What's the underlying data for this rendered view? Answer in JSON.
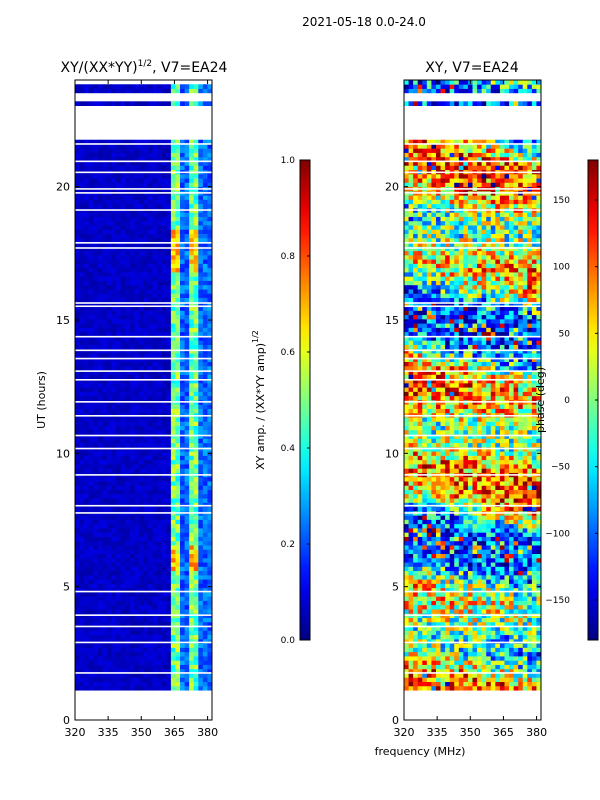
{
  "figure": {
    "suptitle": "2021-05-18 0.0-24.0",
    "xlabel": "frequency (MHz)"
  },
  "colors": {
    "background": "#ffffff",
    "masked": "#ffffff",
    "axes": "#000000"
  },
  "chart_data": [
    {
      "type": "heatmap",
      "title_prefix": "XY/(XX*YY)",
      "title_sup": "1/2",
      "title_suffix": ", V7=EA24",
      "xlabel": "",
      "ylabel": "UT (hours)",
      "x_range": [
        320,
        382
      ],
      "y_range": [
        0,
        24
      ],
      "xticks": [
        "320",
        "335",
        "350",
        "365",
        "380"
      ],
      "xtick_values": [
        320,
        335,
        350,
        365,
        380
      ],
      "yticks": [
        "0",
        "5",
        "10",
        "15",
        "20"
      ],
      "ytick_values": [
        0,
        5,
        10,
        15,
        20
      ],
      "colormap": "jet",
      "colorbar": {
        "label_main": "XY amp. / (XX*YY amp)",
        "label_sup": "1/2",
        "range": [
          0.0,
          1.0
        ],
        "ticks": [
          "0.0",
          "0.2",
          "0.4",
          "0.6",
          "0.8",
          "1.0"
        ],
        "tick_values": [
          0.0,
          0.2,
          0.4,
          0.6,
          0.8,
          1.0
        ]
      },
      "masked_hours": [
        [
          0.05,
          1.0
        ],
        [
          21.9,
          23.0
        ],
        [
          23.3,
          23.45
        ],
        [
          23.9,
          24.0
        ]
      ],
      "high_band_mhz": [
        363,
        381
      ],
      "high_rows_hours": [
        [
          16.8,
          18.4
        ],
        [
          5.5,
          6.7
        ]
      ]
    },
    {
      "type": "heatmap",
      "title": "XY, V7=EA24",
      "xlabel": "",
      "ylabel": "",
      "x_range": [
        320,
        382
      ],
      "y_range": [
        0,
        24
      ],
      "xticks": [
        "320",
        "335",
        "350",
        "365",
        "380"
      ],
      "xtick_values": [
        320,
        335,
        350,
        365,
        380
      ],
      "yticks": [
        "0",
        "5",
        "10",
        "15",
        "20"
      ],
      "ytick_values": [
        0,
        5,
        10,
        15,
        20
      ],
      "colormap": "jet",
      "colorbar": {
        "label": "phase (deg)",
        "range": [
          -180,
          180
        ],
        "ticks": [
          "−150",
          "−100",
          "−50",
          "0",
          "50",
          "100",
          "150"
        ],
        "tick_values": [
          -150,
          -100,
          -50,
          0,
          50,
          100,
          150
        ]
      },
      "masked_hours": [
        [
          0.05,
          1.0
        ],
        [
          21.9,
          23.0
        ],
        [
          23.3,
          23.45
        ]
      ]
    }
  ]
}
